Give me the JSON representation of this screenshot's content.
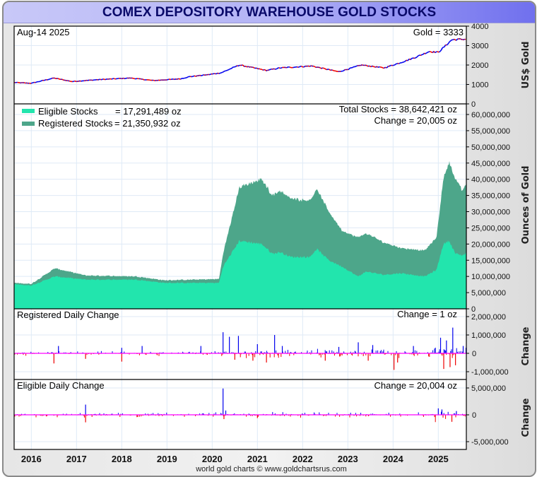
{
  "title": "COMEX DEPOSITORY WAREHOUSE GOLD STOCKS",
  "footer": "world gold charts © www.goldchartsrus.com",
  "colors": {
    "eligible": "#22e5ad",
    "registered": "#4da68a",
    "up": "#0000ee",
    "down": "#ee0000",
    "zero_line": "#ff00ff",
    "grid": "#dfeaf6"
  },
  "chart_data": [
    {
      "type": "line",
      "panel": "gold",
      "date_label": "Aug-14  2025",
      "value_label": "Gold = 3333",
      "ylabel": "US$ Gold",
      "ylim": [
        0,
        4000
      ],
      "tick_labels": [
        "0",
        "1000",
        "2000",
        "3000",
        "4000"
      ],
      "tick_values": [
        0,
        1000,
        2000,
        3000,
        4000
      ],
      "series": [
        {
          "name": "Gold",
          "x": [
            2015.62,
            2016.0,
            2016.5,
            2016.9,
            2017.5,
            2018.2,
            2018.7,
            2019.3,
            2019.5,
            2019.9,
            2020.2,
            2020.6,
            2021.2,
            2021.5,
            2022.2,
            2022.8,
            2023.3,
            2023.8,
            2024.2,
            2024.5,
            2024.8,
            2025.0,
            2025.3,
            2025.62
          ],
          "y": [
            1100,
            1060,
            1330,
            1150,
            1250,
            1330,
            1200,
            1290,
            1400,
            1500,
            1600,
            2000,
            1720,
            1850,
            1950,
            1650,
            2000,
            1850,
            2150,
            2400,
            2700,
            2650,
            3300,
            3333
          ]
        }
      ]
    },
    {
      "type": "area",
      "panel": "stocks",
      "ylabel": "Ounces of Gold",
      "units": "million oz",
      "ylim": [
        0,
        60
      ],
      "legend": [
        {
          "name": "Eligible Stocks",
          "value": "= 17,291,489 oz"
        },
        {
          "name": "Registered Stocks",
          "value": "= 21,350,932 oz"
        }
      ],
      "total_label": "Total Stocks = 38,642,421 oz",
      "change_label": "Change = 20,005 oz",
      "tick_labels": [
        "0",
        "5,000,000",
        "10,000,000",
        "15,000,000",
        "20,000,000",
        "25,000,000",
        "30,000,000",
        "35,000,000",
        "40,000,000",
        "45,000,000",
        "50,000,000",
        "55,000,000",
        "60,000,000"
      ],
      "tick_values": [
        0,
        5,
        10,
        15,
        20,
        25,
        30,
        35,
        40,
        45,
        50,
        55,
        60
      ],
      "x": [
        2015.62,
        2016.0,
        2016.52,
        2017.2,
        2018.33,
        2018.94,
        2020.15,
        2020.24,
        2020.6,
        2021.1,
        2021.33,
        2021.5,
        2021.74,
        2022.16,
        2022.31,
        2022.58,
        2022.88,
        2023.22,
        2023.41,
        2023.79,
        2024.17,
        2024.7,
        2024.96,
        2025.11,
        2025.24,
        2025.38,
        2025.53,
        2025.62
      ],
      "series": [
        {
          "name": "Eligible Stocks",
          "values": [
            7.6,
            7.2,
            10.0,
            9.0,
            9.0,
            8.0,
            8.0,
            13.0,
            21.0,
            20.0,
            17.0,
            17.5,
            16.0,
            16.0,
            18.5,
            15.0,
            13.0,
            10.0,
            11.5,
            10.5,
            11.0,
            10.0,
            12.0,
            20.0,
            21.0,
            17.0,
            16.5,
            17.29
          ]
        },
        {
          "name": "Registered Stocks",
          "values": [
            0.4,
            0.5,
            2.5,
            1.3,
            1.0,
            0.8,
            1.2,
            4.0,
            16.5,
            20.0,
            18.0,
            19.0,
            18.0,
            17.5,
            18.5,
            15.0,
            11.0,
            12.0,
            11.8,
            10.0,
            7.8,
            8.0,
            10.0,
            20.0,
            24.5,
            23.0,
            20.0,
            21.35
          ]
        }
      ]
    },
    {
      "type": "bar",
      "panel": "registered_change",
      "title": "Registered Daily Change",
      "change_label": "Change = 1 oz",
      "ylabel": "Change",
      "units": "million oz",
      "ylim": [
        -1.6,
        2.2
      ],
      "tick_labels": [
        "-1,000,000",
        "0",
        "1,000,000",
        "2,000,000"
      ],
      "tick_values": [
        -1,
        0,
        1,
        2
      ],
      "noise_scale": 0.08,
      "spikes": [
        [
          2016.5,
          -0.55
        ],
        [
          2016.6,
          0.4
        ],
        [
          2017.2,
          -0.3
        ],
        [
          2018.0,
          -0.45
        ],
        [
          2018.0,
          0.3
        ],
        [
          2018.45,
          0.4
        ],
        [
          2019.75,
          0.4
        ],
        [
          2020.24,
          1.15
        ],
        [
          2020.38,
          0.9
        ],
        [
          2020.58,
          0.95
        ],
        [
          2020.5,
          -0.35
        ],
        [
          2020.9,
          -0.4
        ],
        [
          2021.0,
          0.5
        ],
        [
          2021.2,
          -0.5
        ],
        [
          2021.38,
          1.0
        ],
        [
          2021.55,
          0.4
        ],
        [
          2022.5,
          -0.4
        ],
        [
          2022.8,
          0.35
        ],
        [
          2023.23,
          0.6
        ],
        [
          2023.45,
          -0.4
        ],
        [
          2023.55,
          0.45
        ],
        [
          2024.02,
          -0.9
        ],
        [
          2024.1,
          -0.5
        ],
        [
          2024.45,
          0.4
        ],
        [
          2025.05,
          0.85
        ],
        [
          2025.12,
          -0.85
        ],
        [
          2025.18,
          0.7
        ],
        [
          2025.26,
          -0.75
        ],
        [
          2025.32,
          1.4
        ],
        [
          2025.38,
          -0.65
        ],
        [
          2025.55,
          0.4
        ]
      ]
    },
    {
      "type": "bar",
      "panel": "eligible_change",
      "title": "Eligible Daily Change",
      "change_label": "Change = 20,004 oz",
      "ylabel": "Change",
      "units": "million oz",
      "ylim": [
        -6.5,
        6.5
      ],
      "tick_labels": [
        "-5,000,000",
        "0",
        "5,000,000"
      ],
      "tick_values": [
        -5,
        0,
        5
      ],
      "noise_scale": 0.3,
      "spikes": [
        [
          2017.2,
          1.9
        ],
        [
          2017.2,
          -1.4
        ],
        [
          2020.24,
          4.9
        ],
        [
          2020.26,
          -0.8
        ],
        [
          2020.3,
          0.8
        ],
        [
          2021.0,
          -0.6
        ],
        [
          2025.0,
          1.2
        ],
        [
          2025.08,
          1.0
        ],
        [
          2025.3,
          -1.3
        ],
        [
          2025.4,
          0.7
        ]
      ]
    }
  ],
  "x_axis": {
    "labels": [
      "2016",
      "2017",
      "2018",
      "2019",
      "2020",
      "2021",
      "2022",
      "2023",
      "2024",
      "2025"
    ],
    "values": [
      2016,
      2017,
      2018,
      2019,
      2020,
      2021,
      2022,
      2023,
      2024,
      2025
    ],
    "range": [
      2015.62,
      2025.62
    ]
  }
}
